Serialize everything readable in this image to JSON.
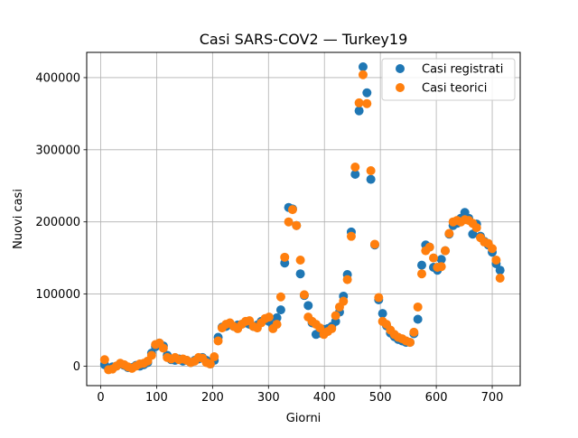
{
  "chart_data": {
    "type": "scatter",
    "title": "Casi SARS-COV2 — Turkey19",
    "xlabel": "Giorni",
    "ylabel": "Nuovi casi",
    "xlim": [
      -25,
      750
    ],
    "ylim": [
      -27000,
      435000
    ],
    "xticks": [
      0,
      100,
      200,
      300,
      400,
      500,
      600,
      700
    ],
    "yticks": [
      0,
      100000,
      200000,
      300000,
      400000
    ],
    "grid": true,
    "legend_position": "upper right",
    "series": [
      {
        "name": "Casi registrati",
        "color": "#1f77b4",
        "points": [
          [
            7,
            2000
          ],
          [
            14,
            -3000
          ],
          [
            21,
            -1000
          ],
          [
            28,
            0
          ],
          [
            35,
            3000
          ],
          [
            42,
            1000
          ],
          [
            49,
            -2000
          ],
          [
            56,
            -2000
          ],
          [
            63,
            1000
          ],
          [
            70,
            0
          ],
          [
            77,
            2000
          ],
          [
            84,
            5000
          ],
          [
            91,
            18000
          ],
          [
            98,
            27000
          ],
          [
            105,
            32000
          ],
          [
            112,
            28000
          ],
          [
            119,
            15000
          ],
          [
            126,
            9000
          ],
          [
            133,
            8000
          ],
          [
            140,
            10000
          ],
          [
            147,
            7000
          ],
          [
            154,
            8000
          ],
          [
            161,
            5000
          ],
          [
            168,
            8000
          ],
          [
            175,
            10000
          ],
          [
            182,
            12000
          ],
          [
            189,
            8000
          ],
          [
            196,
            3000
          ],
          [
            203,
            8000
          ],
          [
            210,
            40000
          ],
          [
            217,
            54000
          ],
          [
            224,
            55000
          ],
          [
            231,
            58000
          ],
          [
            238,
            55000
          ],
          [
            245,
            57000
          ],
          [
            252,
            58000
          ],
          [
            259,
            60000
          ],
          [
            266,
            58000
          ],
          [
            273,
            55000
          ],
          [
            280,
            57000
          ],
          [
            287,
            62000
          ],
          [
            294,
            65000
          ],
          [
            301,
            62000
          ],
          [
            308,
            55000
          ],
          [
            315,
            67000
          ],
          [
            322,
            78000
          ],
          [
            329,
            143000
          ],
          [
            336,
            220000
          ],
          [
            343,
            218000
          ],
          [
            350,
            195000
          ],
          [
            357,
            128000
          ],
          [
            364,
            98000
          ],
          [
            371,
            84000
          ],
          [
            378,
            60000
          ],
          [
            385,
            44000
          ],
          [
            392,
            46000
          ],
          [
            399,
            51000
          ],
          [
            406,
            52000
          ],
          [
            413,
            55000
          ],
          [
            420,
            62000
          ],
          [
            427,
            75000
          ],
          [
            434,
            97000
          ],
          [
            441,
            127000
          ],
          [
            448,
            186000
          ],
          [
            455,
            266000
          ],
          [
            462,
            354000
          ],
          [
            469,
            415000
          ],
          [
            476,
            379000
          ],
          [
            483,
            259000
          ],
          [
            490,
            168000
          ],
          [
            497,
            92000
          ],
          [
            504,
            73000
          ],
          [
            511,
            56000
          ],
          [
            518,
            46000
          ],
          [
            525,
            41000
          ],
          [
            532,
            37000
          ],
          [
            539,
            35000
          ],
          [
            546,
            33000
          ],
          [
            553,
            33000
          ],
          [
            560,
            45000
          ],
          [
            567,
            65000
          ],
          [
            574,
            140000
          ],
          [
            581,
            168000
          ],
          [
            588,
            165000
          ],
          [
            595,
            137000
          ],
          [
            602,
            133000
          ],
          [
            609,
            148000
          ],
          [
            616,
            160000
          ],
          [
            623,
            183000
          ],
          [
            630,
            195000
          ],
          [
            637,
            198000
          ],
          [
            644,
            205000
          ],
          [
            651,
            213000
          ],
          [
            658,
            205000
          ],
          [
            665,
            183000
          ],
          [
            672,
            197000
          ],
          [
            679,
            180000
          ],
          [
            686,
            173000
          ],
          [
            693,
            168000
          ],
          [
            700,
            158000
          ],
          [
            707,
            142000
          ],
          [
            714,
            133000
          ]
        ]
      },
      {
        "name": "Casi teorici",
        "color": "#ff7f0e",
        "points": [
          [
            7,
            9000
          ],
          [
            14,
            -5000
          ],
          [
            21,
            -4000
          ],
          [
            28,
            0
          ],
          [
            35,
            4000
          ],
          [
            42,
            2000
          ],
          [
            49,
            -1000
          ],
          [
            56,
            -3000
          ],
          [
            63,
            0
          ],
          [
            70,
            3000
          ],
          [
            77,
            4000
          ],
          [
            84,
            7000
          ],
          [
            91,
            15000
          ],
          [
            98,
            30000
          ],
          [
            105,
            32000
          ],
          [
            112,
            25000
          ],
          [
            119,
            12000
          ],
          [
            126,
            10000
          ],
          [
            133,
            12000
          ],
          [
            140,
            9000
          ],
          [
            147,
            10000
          ],
          [
            154,
            8000
          ],
          [
            161,
            5000
          ],
          [
            168,
            7000
          ],
          [
            175,
            12000
          ],
          [
            182,
            11000
          ],
          [
            189,
            5000
          ],
          [
            196,
            3000
          ],
          [
            203,
            13000
          ],
          [
            210,
            35000
          ],
          [
            217,
            53000
          ],
          [
            224,
            58000
          ],
          [
            231,
            60000
          ],
          [
            238,
            55000
          ],
          [
            245,
            52000
          ],
          [
            252,
            58000
          ],
          [
            259,
            62000
          ],
          [
            266,
            63000
          ],
          [
            273,
            55000
          ],
          [
            280,
            53000
          ],
          [
            287,
            60000
          ],
          [
            294,
            66000
          ],
          [
            301,
            68000
          ],
          [
            308,
            52000
          ],
          [
            315,
            58000
          ],
          [
            322,
            96000
          ],
          [
            329,
            151000
          ],
          [
            336,
            200000
          ],
          [
            343,
            217000
          ],
          [
            350,
            195000
          ],
          [
            357,
            147000
          ],
          [
            364,
            99000
          ],
          [
            371,
            68000
          ],
          [
            378,
            62000
          ],
          [
            385,
            58000
          ],
          [
            392,
            53000
          ],
          [
            399,
            44000
          ],
          [
            406,
            48000
          ],
          [
            413,
            52000
          ],
          [
            420,
            70000
          ],
          [
            427,
            82000
          ],
          [
            434,
            90000
          ],
          [
            441,
            120000
          ],
          [
            448,
            180000
          ],
          [
            455,
            276000
          ],
          [
            462,
            365000
          ],
          [
            469,
            404000
          ],
          [
            476,
            364000
          ],
          [
            483,
            271000
          ],
          [
            490,
            169000
          ],
          [
            497,
            95000
          ],
          [
            504,
            62000
          ],
          [
            511,
            58000
          ],
          [
            518,
            50000
          ],
          [
            525,
            44000
          ],
          [
            532,
            40000
          ],
          [
            539,
            38000
          ],
          [
            546,
            35000
          ],
          [
            553,
            33000
          ],
          [
            560,
            47000
          ],
          [
            567,
            82000
          ],
          [
            574,
            128000
          ],
          [
            581,
            160000
          ],
          [
            588,
            165000
          ],
          [
            595,
            150000
          ],
          [
            602,
            137000
          ],
          [
            609,
            138000
          ],
          [
            616,
            160000
          ],
          [
            623,
            184000
          ],
          [
            630,
            200000
          ],
          [
            637,
            202000
          ],
          [
            644,
            200000
          ],
          [
            651,
            203000
          ],
          [
            658,
            202000
          ],
          [
            665,
            198000
          ],
          [
            672,
            192000
          ],
          [
            679,
            178000
          ],
          [
            686,
            172000
          ],
          [
            693,
            170000
          ],
          [
            700,
            163000
          ],
          [
            707,
            147000
          ],
          [
            714,
            122000
          ]
        ]
      }
    ]
  }
}
